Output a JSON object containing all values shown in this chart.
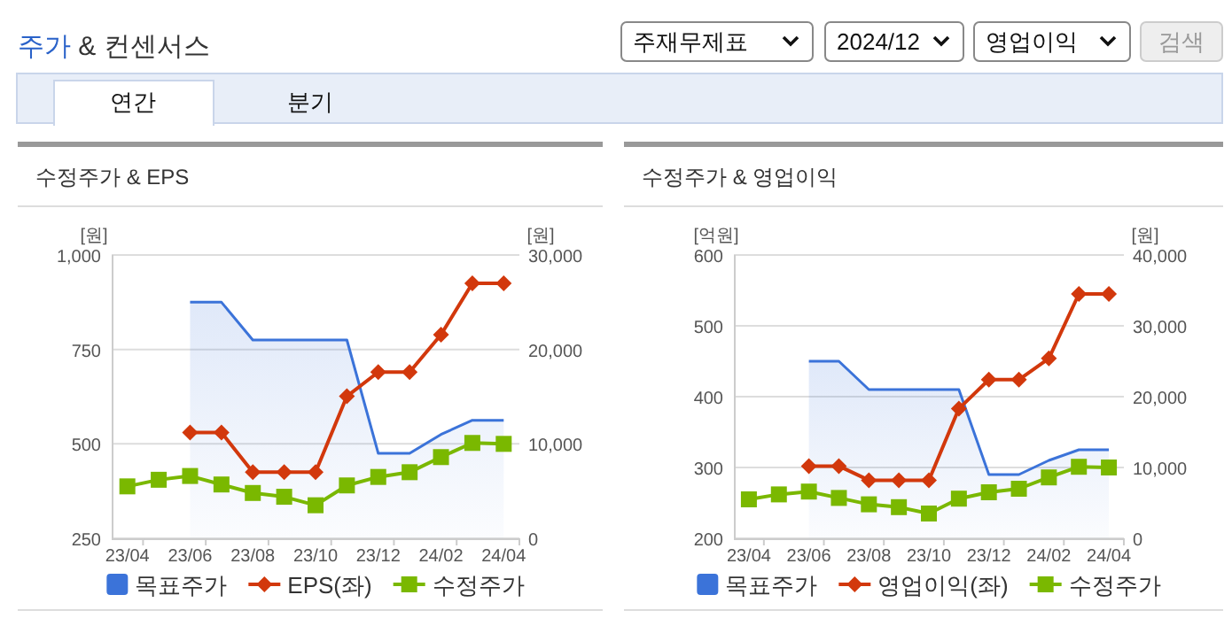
{
  "chart_data": [
    {
      "type": "other",
      "title": "주가 & 컨센서스",
      "annotations": [
        "주재무제표",
        "2024/12",
        "영업이익",
        "검색",
        "연간",
        "분기"
      ]
    },
    {
      "type": "line",
      "title": "수정주가 & EPS",
      "ylabel": "[원]",
      "y2label": "[원]",
      "categories": [
        "23/04",
        null,
        "23/06",
        null,
        "23/08",
        null,
        "23/10",
        null,
        "23/12",
        null,
        "24/02",
        null,
        "24/04"
      ],
      "ylim": [
        250,
        1000
      ],
      "yticks": [
        250,
        500,
        750,
        {
          "value": 1000,
          "label": "1,000"
        }
      ],
      "y2lim": [
        0,
        30000
      ],
      "y2ticks": [
        0,
        {
          "value": 10000,
          "label": "10,000"
        },
        {
          "value": 20000,
          "label": "20,000"
        },
        {
          "value": 30000,
          "label": "30,000"
        }
      ],
      "grid": "y",
      "legend": "bottom",
      "series": [
        {
          "name": "목표주가",
          "type": "area",
          "axis": "y2",
          "color": "#3b73d9",
          "values": [
            null,
            null,
            25000,
            25000,
            21000,
            21000,
            21000,
            21000,
            9000,
            9000,
            11000,
            12500,
            12500
          ]
        },
        {
          "name": "EPS(좌)",
          "type": "line",
          "axis": "y",
          "marker": "diamond",
          "color": "#d2380c",
          "values": [
            null,
            null,
            530,
            530,
            425,
            425,
            425,
            626,
            690,
            690,
            789,
            925,
            925
          ]
        },
        {
          "name": "수정주가",
          "type": "line",
          "axis": "y2",
          "marker": "square",
          "color": "#7ab800",
          "values": [
            5500,
            6200,
            6600,
            5700,
            4800,
            4400,
            3500,
            5600,
            6500,
            7000,
            8600,
            10100,
            10000
          ]
        }
      ]
    },
    {
      "type": "line",
      "title": "수정주가 & 영업이익",
      "ylabel": "[억원]",
      "y2label": "[원]",
      "categories": [
        "23/04",
        null,
        "23/06",
        null,
        "23/08",
        null,
        "23/10",
        null,
        "23/12",
        null,
        "24/02",
        null,
        "24/04"
      ],
      "ylim": [
        200,
        600
      ],
      "yticks": [
        200,
        300,
        400,
        500,
        600
      ],
      "y2lim": [
        0,
        40000
      ],
      "y2ticks": [
        0,
        {
          "value": 10000,
          "label": "10,000"
        },
        {
          "value": 20000,
          "label": "20,000"
        },
        {
          "value": 30000,
          "label": "30,000"
        },
        {
          "value": 40000,
          "label": "40,000"
        }
      ],
      "grid": "y",
      "legend": "bottom",
      "series": [
        {
          "name": "목표주가",
          "type": "area",
          "axis": "y2",
          "color": "#3b73d9",
          "values": [
            null,
            null,
            25000,
            25000,
            21000,
            21000,
            21000,
            21000,
            9000,
            9000,
            11000,
            12500,
            12500
          ]
        },
        {
          "name": "영업이익(좌)",
          "type": "line",
          "axis": "y",
          "marker": "diamond",
          "color": "#d2380c",
          "values": [
            null,
            null,
            302,
            302,
            282,
            282,
            282,
            383,
            424,
            424,
            454,
            545,
            545
          ]
        },
        {
          "name": "수정주가",
          "type": "line",
          "axis": "y2",
          "marker": "square",
          "color": "#7ab800",
          "values": [
            5500,
            6200,
            6600,
            5700,
            4800,
            4400,
            3500,
            5600,
            6500,
            7000,
            8600,
            10100,
            10000
          ]
        }
      ]
    }
  ]
}
